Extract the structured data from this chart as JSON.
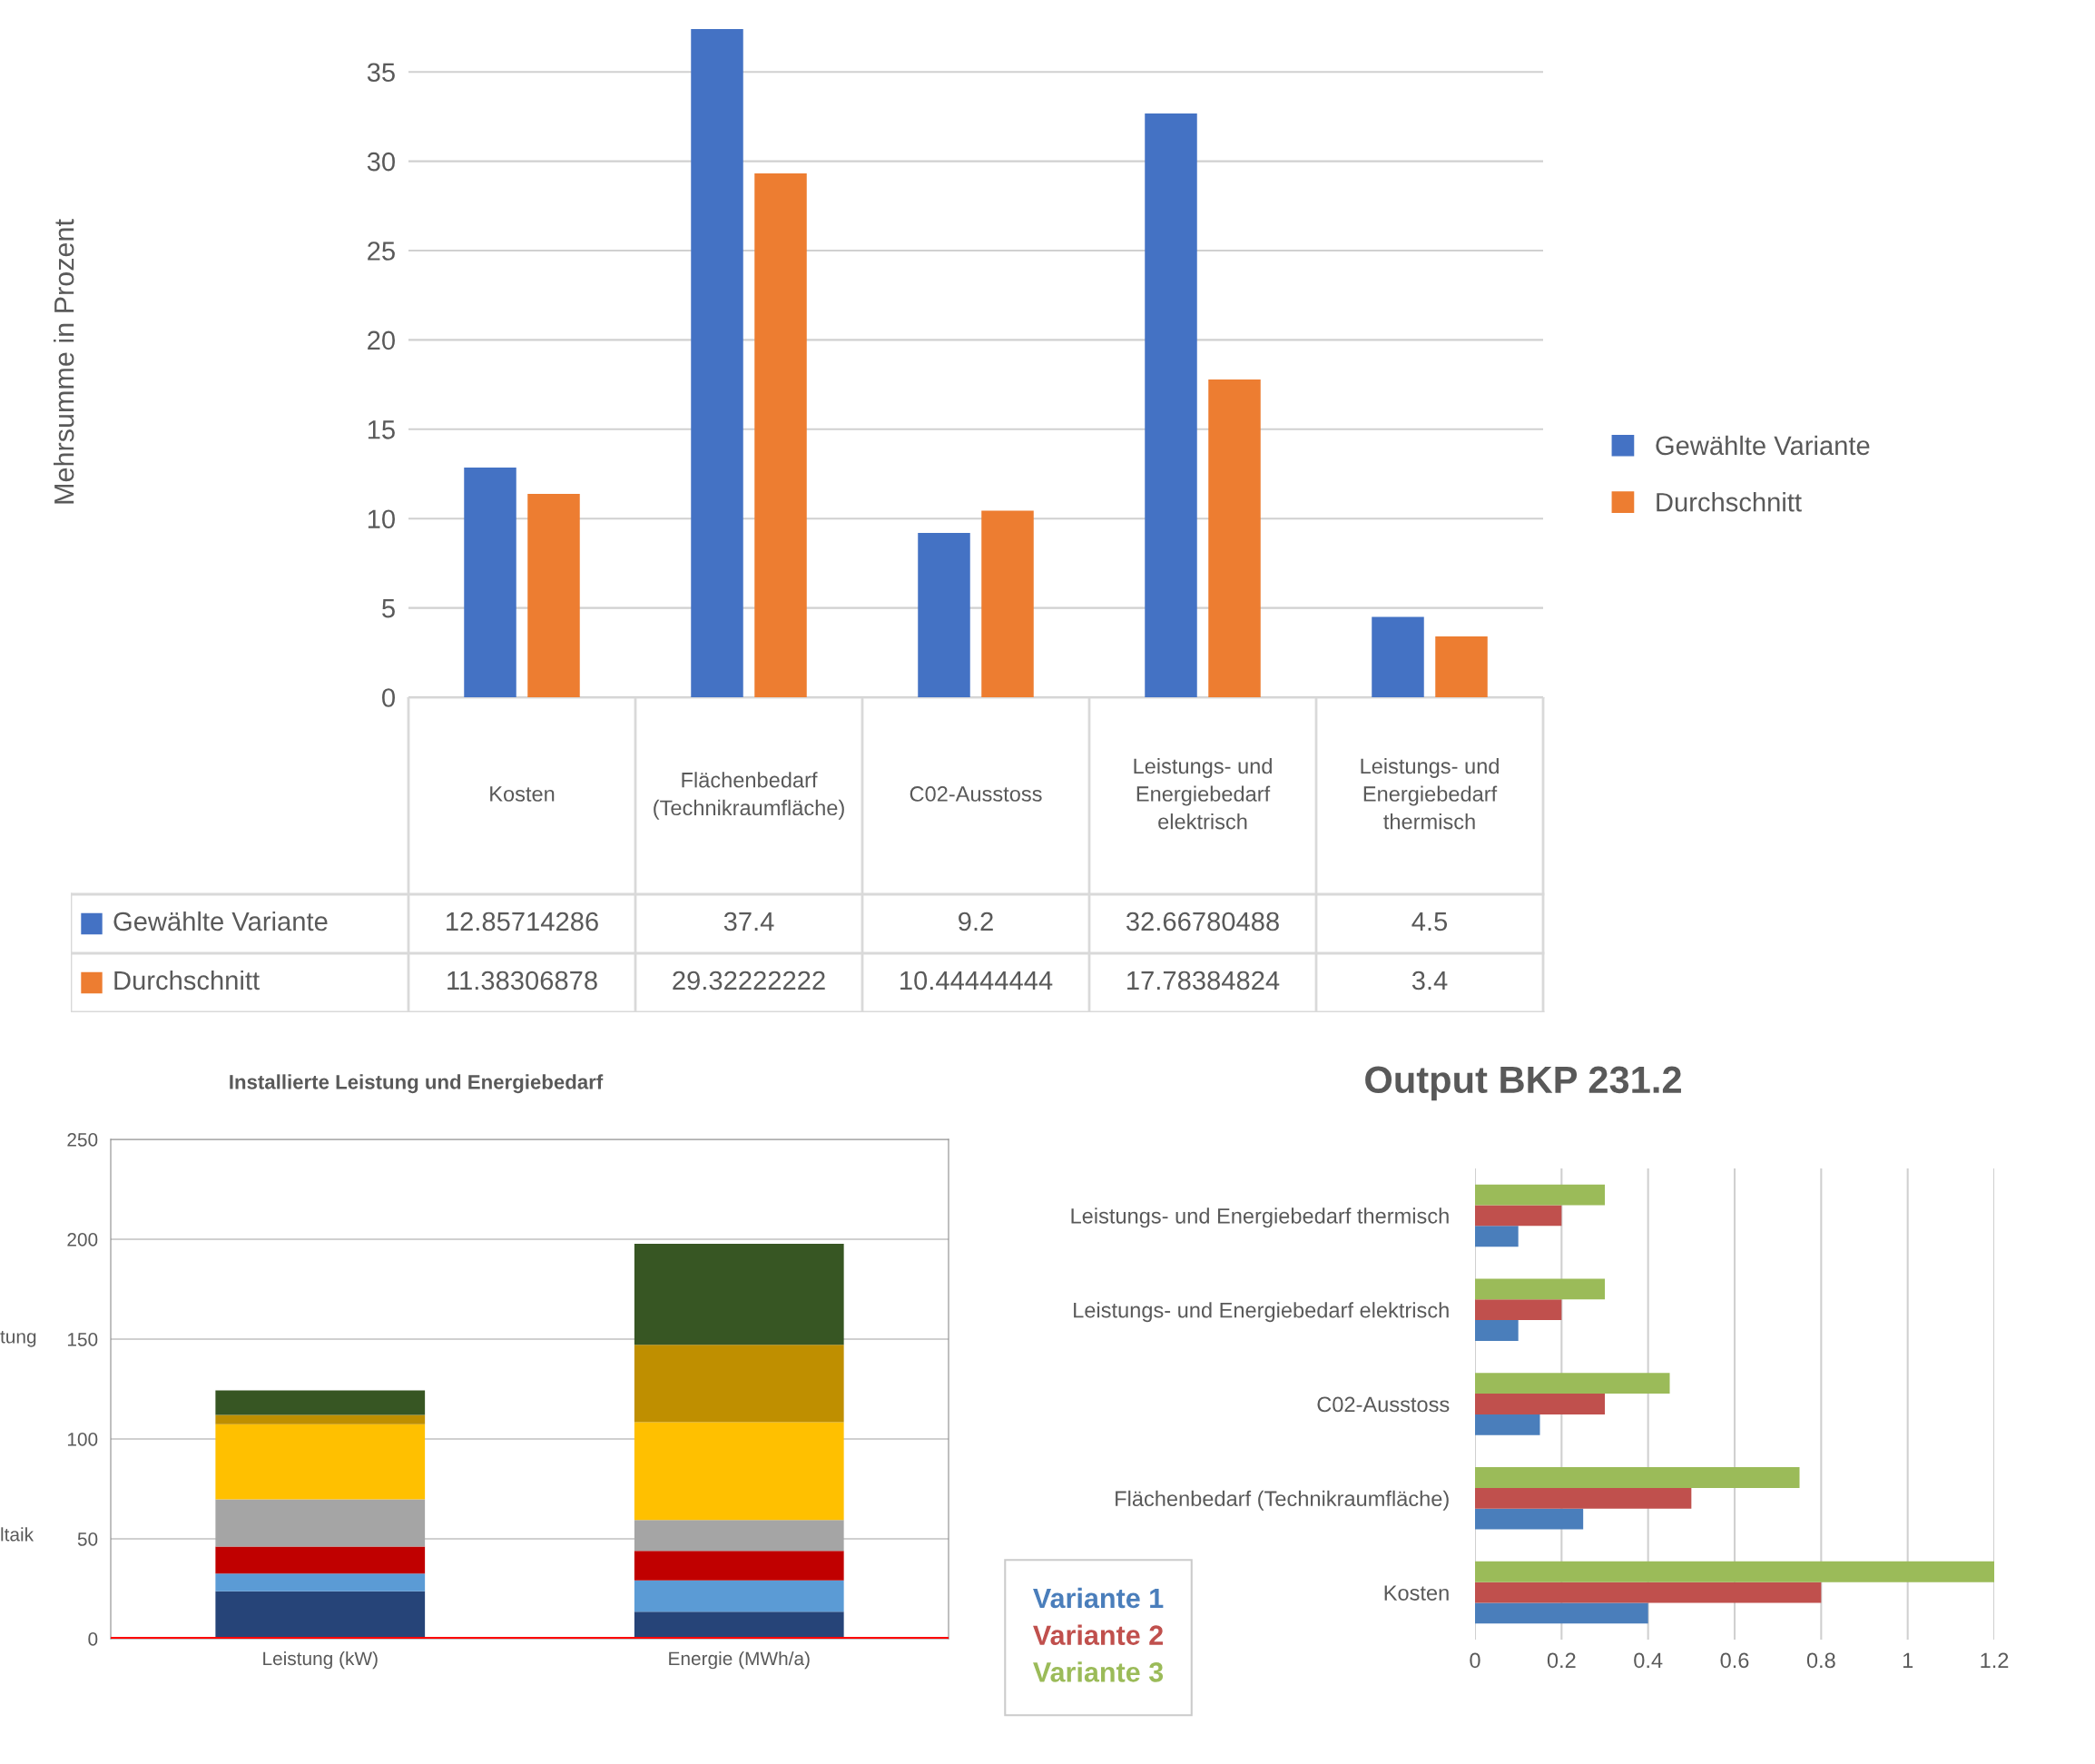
{
  "chart_data": [
    {
      "type": "bar",
      "ylabel": "Mehrsumme in Prozent",
      "categories": [
        "Kosten",
        "Flächenbedarf (Technikraumfläche)",
        "C02-Ausstoss",
        "Leistungs- und Energiebedarf elektrisch",
        "Leistungs- und Energiebedarf thermisch"
      ],
      "series": [
        {
          "name": "Gewählte Variante",
          "color": "#4472c4",
          "values": [
            12.85714286,
            37.4,
            9.2,
            32.66780488,
            4.5
          ]
        },
        {
          "name": "Durchschnitt",
          "color": "#ed7d31",
          "values": [
            11.38306878,
            29.32222222,
            10.44444444,
            17.78384824,
            3.4
          ]
        }
      ],
      "ylim": [
        0,
        37.5
      ],
      "yticks": [
        0,
        5,
        10,
        15,
        20,
        25,
        30,
        35
      ],
      "grid": "y",
      "legend": "right",
      "data_labels": true
    },
    {
      "type": "bar",
      "title": "Installierte Leistung und Energiebedarf",
      "categories": [
        "Leistung (kW)",
        "Energie (MWh/a)"
      ],
      "stacked": true,
      "series": [
        {
          "color": "#264478",
          "values": [
            23.7,
            13.5
          ]
        },
        {
          "color": "#5b9bd5",
          "values": [
            8.9,
            15.7
          ]
        },
        {
          "color": "#c00000",
          "values": [
            13.5,
            14.8
          ]
        },
        {
          "color": "#a5a5a5",
          "values": [
            23.7,
            15.4
          ]
        },
        {
          "color": "#ffc000",
          "values": [
            37.6,
            49.0
          ]
        },
        {
          "color": "#bf8f00",
          "values": [
            4.6,
            38.8
          ]
        },
        {
          "color": "#375623",
          "values": [
            12.3,
            50.5
          ]
        }
      ],
      "ylim": [
        0,
        250
      ],
      "yticks": [
        0,
        50,
        100,
        150,
        200,
        250
      ],
      "grid": "y",
      "ref_lines": [
        {
          "axis": "y",
          "value": 0,
          "color": "#ff0000"
        }
      ],
      "annotations": [
        "tung",
        "ltaik"
      ]
    },
    {
      "type": "bar",
      "orientation": "horizontal",
      "title": "Output BKP 231.2",
      "categories": [
        "Leistungs- und Energiebedarf thermisch",
        "Leistungs- und Energiebedarf elektrisch",
        "C02-Ausstoss",
        "Flächenbedarf (Technikraumfläche)",
        "Kosten"
      ],
      "series": [
        {
          "name": "Variante 1",
          "color": "#4a7ebb",
          "values": [
            0.1,
            0.1,
            0.15,
            0.25,
            0.4
          ]
        },
        {
          "name": "Variante 2",
          "color": "#c0504d",
          "values": [
            0.2,
            0.2,
            0.3,
            0.5,
            0.8
          ]
        },
        {
          "name": "Variante 3",
          "color": "#9bbb59",
          "values": [
            0.3,
            0.3,
            0.45,
            0.75,
            1.2
          ]
        }
      ],
      "xlim": [
        0,
        1.2
      ],
      "xticks": [
        0,
        0.2,
        0.4,
        0.6,
        0.8,
        1,
        1.2
      ],
      "grid": "x",
      "legend": "bottom left"
    }
  ]
}
